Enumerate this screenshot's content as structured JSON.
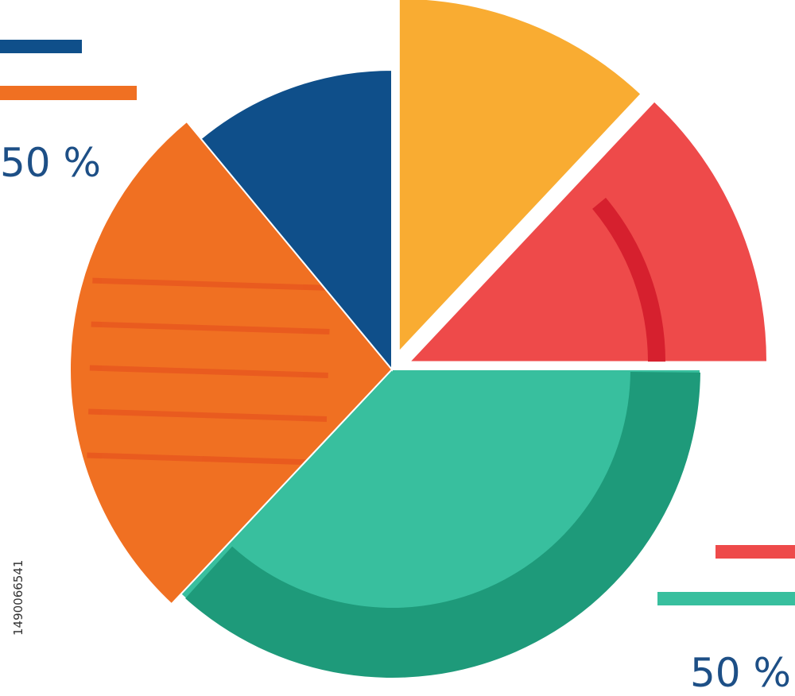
{
  "chart_data": {
    "type": "pie",
    "values": [
      12,
      13,
      37,
      27,
      11
    ],
    "colors": [
      "#f9ac32",
      "#ee4a4a",
      "#38bf9e",
      "#f07022",
      "#0f4f8a"
    ],
    "annotations": [
      "50 %",
      "50 %"
    ],
    "stock_id": "1490066541"
  }
}
